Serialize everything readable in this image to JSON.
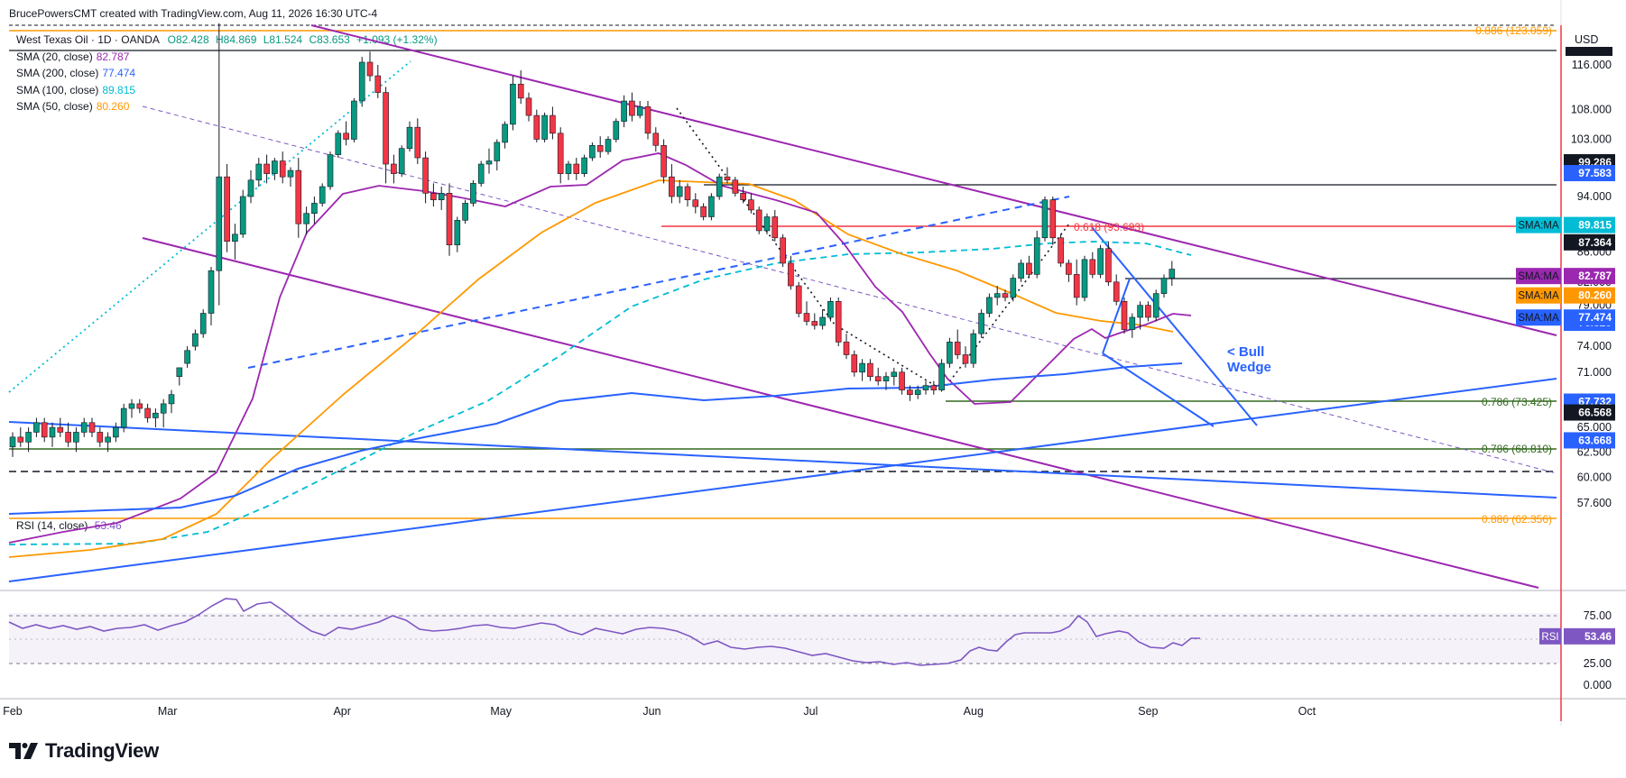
{
  "header": {
    "credit": "BrucePowersCMT created with TradingView.com, Aug 11, 2026 16:30 UTC-4"
  },
  "legend": {
    "instrument": "West Texas Oil · 1D · OANDA",
    "ohlc": {
      "o": "O82.428",
      "h": "H84.869",
      "l": "L81.524",
      "c": "C83.653",
      "chg": "+1.093 (+1.32%)"
    },
    "sma": [
      {
        "label": "SMA (20, close)",
        "value": "82.787",
        "color": "#9c27b0"
      },
      {
        "label": "SMA (200, close)",
        "value": "77.474",
        "color": "#2962ff"
      },
      {
        "label": "SMA (100, close)",
        "value": "89.815",
        "color": "#00bcd4"
      },
      {
        "label": "SMA (50, close)",
        "value": "80.260",
        "color": "#ff9800"
      }
    ]
  },
  "rsi_legend": {
    "label": "RSI (14, close)",
    "value": "53.46"
  },
  "currency": "USD",
  "annotation": {
    "line1": "< Bull",
    "line2": "Wedge"
  },
  "fib_labels": [
    {
      "text": "0.886 (123.059)",
      "y": "123.059"
    },
    {
      "text": "0.618 (93.693)",
      "y": "93.693"
    },
    {
      "text": "0.786 (73.425)",
      "y": "73.425"
    },
    {
      "text": "0.786 (68.810)",
      "y": "68.810"
    },
    {
      "text": "0.886 (62.356)",
      "y": "62.356"
    }
  ],
  "price_badges": [
    {
      "text": "99.286",
      "bg": "#131722"
    },
    {
      "text": "97.583",
      "bg": "#2962ff"
    },
    {
      "text": "87.364",
      "bg": "#131722"
    },
    {
      "text": "76.829",
      "bg": "#2962ff"
    },
    {
      "text": "67.732",
      "bg": "#2962ff"
    },
    {
      "text": "66.568",
      "bg": "#131722"
    },
    {
      "text": "63.668",
      "bg": "#2962ff"
    }
  ],
  "ma_badges": [
    {
      "tag": "SMA:MA",
      "value": "89.815",
      "bg": "#00bcd4"
    },
    {
      "tag": "SMA:MA",
      "value": "82.787",
      "bg": "#9c27b0"
    },
    {
      "tag": "SMA:MA",
      "value": "80.260",
      "bg": "#ff9800"
    },
    {
      "tag": "SMA:MA",
      "value": "77.474",
      "bg": "#2962ff"
    }
  ],
  "rsi_badge": {
    "tag": "RSI",
    "value": "53.46",
    "bg": "#7e57c2"
  },
  "footer": {
    "brand": "TradingView"
  },
  "chart_data": {
    "type": "candlestick",
    "y_axis_ticks": [
      "116.000",
      "108.000",
      "103.000",
      "94.000",
      "86.000",
      "82.000",
      "79.000",
      "74.000",
      "71.000",
      "65.000",
      "62.500",
      "60.000",
      "57.600"
    ],
    "rsi_axis_ticks": [
      "75.00",
      "25.00",
      "0.000"
    ],
    "x_axis_ticks": [
      "Feb",
      "Mar",
      "Apr",
      "May",
      "Jun",
      "Jul",
      "Aug",
      "Sep",
      "Oct"
    ],
    "candles": [
      [
        0,
        63.0,
        64.5,
        62.0,
        64.0
      ],
      [
        1,
        64.0,
        65.0,
        63.0,
        63.5
      ],
      [
        2,
        63.5,
        65.0,
        62.5,
        64.5
      ],
      [
        3,
        64.5,
        66.0,
        64.0,
        65.5
      ],
      [
        4,
        65.5,
        66.0,
        63.5,
        64.0
      ],
      [
        5,
        64.0,
        65.5,
        63.0,
        65.0
      ],
      [
        6,
        65.0,
        66.0,
        64.0,
        64.5
      ],
      [
        7,
        64.5,
        65.5,
        63.0,
        63.5
      ],
      [
        8,
        63.5,
        65.0,
        62.5,
        64.5
      ],
      [
        9,
        64.5,
        66.0,
        64.0,
        65.5
      ],
      [
        10,
        65.5,
        66.0,
        64.0,
        64.5
      ],
      [
        11,
        64.5,
        65.0,
        63.0,
        63.5
      ],
      [
        12,
        63.5,
        64.5,
        62.5,
        64.0
      ],
      [
        13,
        64.0,
        65.5,
        63.5,
        65.0
      ],
      [
        14,
        65.0,
        67.5,
        64.5,
        67.0
      ],
      [
        15,
        67.0,
        68.0,
        66.0,
        67.5
      ],
      [
        16,
        67.5,
        68.0,
        66.5,
        67.0
      ],
      [
        17,
        67.0,
        67.5,
        65.5,
        66.0
      ],
      [
        18,
        66.0,
        67.0,
        65.0,
        66.5
      ],
      [
        19,
        66.5,
        68.0,
        65.0,
        67.5
      ],
      [
        20,
        67.5,
        69.0,
        66.5,
        68.5
      ],
      [
        21,
        70.5,
        71.5,
        69.5,
        71.5
      ],
      [
        22,
        72.0,
        74.0,
        71.5,
        73.5
      ],
      [
        23,
        74.0,
        76.0,
        73.5,
        75.5
      ],
      [
        24,
        75.5,
        78.5,
        75.0,
        78.0
      ],
      [
        25,
        78.0,
        84.0,
        76.5,
        83.5
      ],
      [
        26,
        83.5,
        124.0,
        79.0,
        97.0
      ],
      [
        27,
        97.0,
        99.0,
        86.0,
        87.5
      ],
      [
        28,
        87.5,
        90.0,
        85.0,
        88.5
      ],
      [
        29,
        88.5,
        95.0,
        88.0,
        94.0
      ],
      [
        30,
        94.0,
        98.0,
        93.0,
        96.5
      ],
      [
        31,
        96.5,
        100.0,
        95.5,
        99.0
      ],
      [
        32,
        99.0,
        100.5,
        96.0,
        97.5
      ],
      [
        33,
        97.5,
        100.0,
        96.5,
        99.5
      ],
      [
        34,
        99.5,
        101.0,
        96.0,
        97.0
      ],
      [
        35,
        97.0,
        98.5,
        95.5,
        98.0
      ],
      [
        36,
        98.0,
        100.0,
        88.0,
        90.0
      ],
      [
        37,
        90.0,
        92.5,
        88.5,
        91.5
      ],
      [
        38,
        91.5,
        94.0,
        90.0,
        93.0
      ],
      [
        39,
        93.0,
        96.0,
        92.5,
        95.5
      ],
      [
        40,
        95.5,
        101.0,
        95.0,
        100.5
      ],
      [
        41,
        100.5,
        104.5,
        100.0,
        104.0
      ],
      [
        42,
        104.0,
        106.0,
        102.0,
        103.0
      ],
      [
        43,
        103.0,
        110.0,
        102.5,
        109.5
      ],
      [
        44,
        109.5,
        117.5,
        108.5,
        116.5
      ],
      [
        45,
        116.5,
        118.5,
        113.0,
        114.0
      ],
      [
        46,
        114.0,
        116.0,
        110.0,
        111.0
      ],
      [
        47,
        111.0,
        112.0,
        96.0,
        99.0
      ],
      [
        48,
        99.0,
        100.5,
        96.0,
        97.5
      ],
      [
        49,
        97.5,
        102.0,
        97.0,
        101.5
      ],
      [
        50,
        101.5,
        106.0,
        101.0,
        105.0
      ],
      [
        51,
        105.0,
        106.5,
        99.0,
        100.0
      ],
      [
        52,
        100.0,
        101.0,
        93.0,
        94.5
      ],
      [
        53,
        94.5,
        96.0,
        92.5,
        93.5
      ],
      [
        54,
        93.5,
        95.5,
        92.0,
        94.5
      ],
      [
        55,
        94.5,
        96.0,
        85.5,
        87.0
      ],
      [
        56,
        87.0,
        91.0,
        86.0,
        90.5
      ],
      [
        57,
        90.5,
        93.5,
        90.0,
        93.0
      ],
      [
        58,
        93.0,
        96.5,
        92.5,
        96.0
      ],
      [
        59,
        96.0,
        99.5,
        95.5,
        99.0
      ],
      [
        60,
        99.0,
        101.5,
        97.5,
        99.5
      ],
      [
        61,
        99.5,
        103.0,
        98.0,
        102.5
      ],
      [
        62,
        102.5,
        106.0,
        101.5,
        105.5
      ],
      [
        63,
        105.5,
        114.0,
        104.5,
        112.5
      ],
      [
        64,
        112.5,
        115.0,
        109.0,
        110.0
      ],
      [
        65,
        110.0,
        111.0,
        106.0,
        107.0
      ],
      [
        66,
        107.0,
        108.0,
        102.5,
        103.0
      ],
      [
        67,
        103.0,
        107.5,
        102.5,
        107.0
      ],
      [
        68,
        107.0,
        108.5,
        103.0,
        104.0
      ],
      [
        69,
        104.0,
        105.0,
        96.0,
        97.5
      ],
      [
        70,
        97.5,
        99.5,
        96.5,
        99.0
      ],
      [
        71,
        99.0,
        100.0,
        96.5,
        97.5
      ],
      [
        72,
        97.5,
        100.5,
        97.0,
        100.0
      ],
      [
        73,
        100.0,
        102.5,
        99.5,
        102.0
      ],
      [
        74,
        102.0,
        103.5,
        100.0,
        101.0
      ],
      [
        75,
        101.0,
        103.5,
        100.5,
        103.0
      ],
      [
        76,
        103.0,
        106.5,
        102.5,
        106.0
      ],
      [
        77,
        106.0,
        110.5,
        105.0,
        109.5
      ],
      [
        78,
        109.5,
        111.0,
        106.0,
        107.0
      ],
      [
        79,
        107.0,
        109.5,
        106.5,
        108.5
      ],
      [
        80,
        108.5,
        109.5,
        103.0,
        104.0
      ],
      [
        81,
        104.0,
        105.0,
        101.0,
        102.0
      ],
      [
        82,
        102.0,
        103.0,
        96.0,
        97.0
      ],
      [
        83,
        97.0,
        99.0,
        93.0,
        94.0
      ],
      [
        84,
        94.0,
        96.5,
        93.0,
        95.5
      ],
      [
        85,
        95.5,
        96.0,
        92.5,
        93.5
      ],
      [
        86,
        93.5,
        94.5,
        91.5,
        92.5
      ],
      [
        87,
        92.5,
        93.0,
        90.5,
        91.0
      ],
      [
        88,
        91.0,
        94.5,
        90.5,
        94.0
      ],
      [
        89,
        94.0,
        97.5,
        93.5,
        97.0
      ],
      [
        90,
        97.0,
        98.5,
        96.0,
        96.5
      ],
      [
        91,
        96.5,
        97.0,
        94.0,
        94.5
      ],
      [
        92,
        94.5,
        95.5,
        93.0,
        93.5
      ],
      [
        93,
        93.5,
        94.5,
        91.5,
        92.0
      ],
      [
        94,
        92.0,
        92.5,
        88.5,
        89.0
      ],
      [
        95,
        89.0,
        91.5,
        88.5,
        91.0
      ],
      [
        96,
        91.0,
        92.0,
        87.5,
        88.0
      ],
      [
        97,
        88.0,
        88.5,
        84.0,
        84.5
      ],
      [
        98,
        84.5,
        85.5,
        81.0,
        81.5
      ],
      [
        99,
        81.5,
        82.0,
        77.5,
        78.0
      ],
      [
        100,
        78.0,
        79.5,
        76.5,
        77.0
      ],
      [
        101,
        77.0,
        78.0,
        76.0,
        76.5
      ],
      [
        102,
        76.5,
        78.5,
        76.0,
        77.5
      ],
      [
        103,
        77.5,
        80.0,
        77.0,
        79.5
      ],
      [
        104,
        79.5,
        80.0,
        74.0,
        74.5
      ],
      [
        105,
        74.5,
        75.5,
        72.5,
        73.0
      ],
      [
        106,
        73.0,
        73.5,
        70.5,
        71.0
      ],
      [
        107,
        71.0,
        72.5,
        70.0,
        72.0
      ],
      [
        108,
        72.0,
        72.5,
        70.0,
        70.5
      ],
      [
        109,
        70.5,
        71.5,
        69.5,
        70.0
      ],
      [
        110,
        70.0,
        71.0,
        69.0,
        70.5
      ],
      [
        111,
        70.5,
        71.5,
        69.5,
        71.0
      ],
      [
        112,
        71.0,
        71.5,
        68.5,
        69.0
      ],
      [
        113,
        69.0,
        69.5,
        67.8,
        68.5
      ],
      [
        114,
        68.5,
        69.5,
        68.0,
        69.0
      ],
      [
        115,
        69.0,
        70.0,
        68.5,
        69.5
      ],
      [
        116,
        69.5,
        70.0,
        68.5,
        69.0
      ],
      [
        117,
        69.0,
        72.5,
        68.8,
        72.0
      ],
      [
        118,
        72.0,
        75.0,
        71.5,
        74.5
      ],
      [
        119,
        74.5,
        76.0,
        72.5,
        73.0
      ],
      [
        120,
        73.0,
        74.0,
        71.5,
        72.0
      ],
      [
        121,
        72.0,
        76.0,
        71.5,
        75.5
      ],
      [
        122,
        75.5,
        78.5,
        75.0,
        78.0
      ],
      [
        123,
        78.0,
        80.5,
        77.5,
        80.0
      ],
      [
        124,
        80.0,
        81.5,
        79.0,
        80.5
      ],
      [
        125,
        80.5,
        81.0,
        79.5,
        80.0
      ],
      [
        126,
        80.0,
        83.0,
        79.5,
        82.5
      ],
      [
        127,
        82.5,
        85.0,
        82.0,
        84.5
      ],
      [
        128,
        84.5,
        85.5,
        82.5,
        83.0
      ],
      [
        129,
        83.0,
        89.0,
        82.5,
        88.0
      ],
      [
        130,
        88.0,
        94.0,
        87.5,
        93.5
      ],
      [
        131,
        93.5,
        94.0,
        87.0,
        88.0
      ],
      [
        132,
        88.0,
        88.5,
        84.0,
        84.5
      ],
      [
        133,
        84.5,
        85.0,
        82.0,
        83.0
      ],
      [
        134,
        83.0,
        85.0,
        79.0,
        80.0
      ],
      [
        135,
        80.0,
        85.5,
        79.5,
        85.0
      ],
      [
        136,
        85.0,
        86.0,
        82.5,
        83.0
      ],
      [
        137,
        83.0,
        87.0,
        82.5,
        86.5
      ],
      [
        138,
        86.5,
        87.5,
        81.5,
        82.0
      ],
      [
        139,
        82.0,
        83.0,
        79.0,
        79.5
      ],
      [
        140,
        79.5,
        80.0,
        75.5,
        76.0
      ],
      [
        141,
        76.0,
        78.0,
        75.0,
        77.5
      ],
      [
        142,
        77.5,
        79.5,
        76.0,
        79.0
      ],
      [
        143,
        79.0,
        79.5,
        77.0,
        77.5
      ],
      [
        144,
        77.5,
        81.0,
        77.0,
        80.5
      ],
      [
        145,
        80.5,
        83.0,
        80.0,
        82.5
      ],
      [
        146,
        82.5,
        84.8,
        81.5,
        83.7
      ]
    ]
  }
}
